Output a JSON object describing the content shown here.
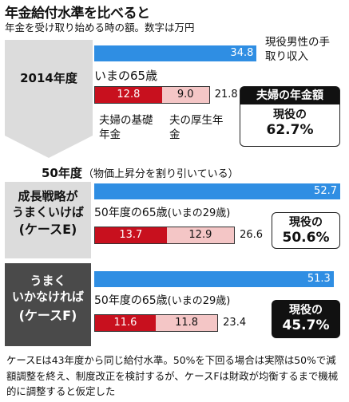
{
  "title": "年金給付水準を比べると",
  "subtitle": "年金を受け取り始める時の額。数字は万円",
  "section_50": {
    "label": "50年度",
    "note": "（物価上昇分を割り引いている）"
  },
  "panels": [
    {
      "label": "2014年度",
      "income_label": "現役男性の手取り収入",
      "sub_label": "いまの65歳",
      "basic_label": "夫婦の基礎年金",
      "pension_label": "夫の厚生年金",
      "ratio_title": "夫婦の年金額",
      "ratio_label": "現役の",
      "ratio_value": "62.7%"
    },
    {
      "label_line1": "成長戦略が",
      "label_line2": "うまくいけば",
      "label_line3": "(ケースE)",
      "sub_label": "50年度の65歳",
      "sub_label_note": "(いまの29歳)",
      "ratio_label": "現役の",
      "ratio_value": "50.6%"
    },
    {
      "label_line1": "うまく",
      "label_line2": "いかなければ",
      "label_line3": "(ケースF)",
      "sub_label": "50年度の65歳",
      "sub_label_note": "(いまの29歳)",
      "ratio_label": "現役の",
      "ratio_value": "45.7%"
    }
  ],
  "footnote": "ケースEは43年度から同じ給付水準。50%を下回る場合は実際は50%で減額調整を終え、制度改正を検討するが、ケースFは財政が均衡するまで機械的に調整すると仮定した",
  "colors": {
    "income_bar": "#2f8ee3",
    "basic_pension": "#c8101e",
    "employee_pension": "#f4c6c6",
    "panel_gray": "#dcdcdc",
    "panel_dark": "#4a4a4a"
  },
  "chart_data": {
    "type": "bar",
    "categories": [
      "2014年度",
      "ケースE",
      "ケースF"
    ],
    "series": [
      {
        "name": "現役男性の手取り収入",
        "values": [
          34.8,
          52.7,
          51.3
        ]
      },
      {
        "name": "夫婦の基礎年金",
        "values": [
          12.8,
          13.7,
          11.6
        ]
      },
      {
        "name": "夫の厚生年金",
        "values": [
          9.0,
          12.9,
          11.8
        ]
      }
    ],
    "totals": [
      21.8,
      26.6,
      23.4
    ],
    "ratios": [
      "62.7%",
      "50.6%",
      "45.7%"
    ],
    "xlim": [
      0,
      52.7
    ]
  }
}
